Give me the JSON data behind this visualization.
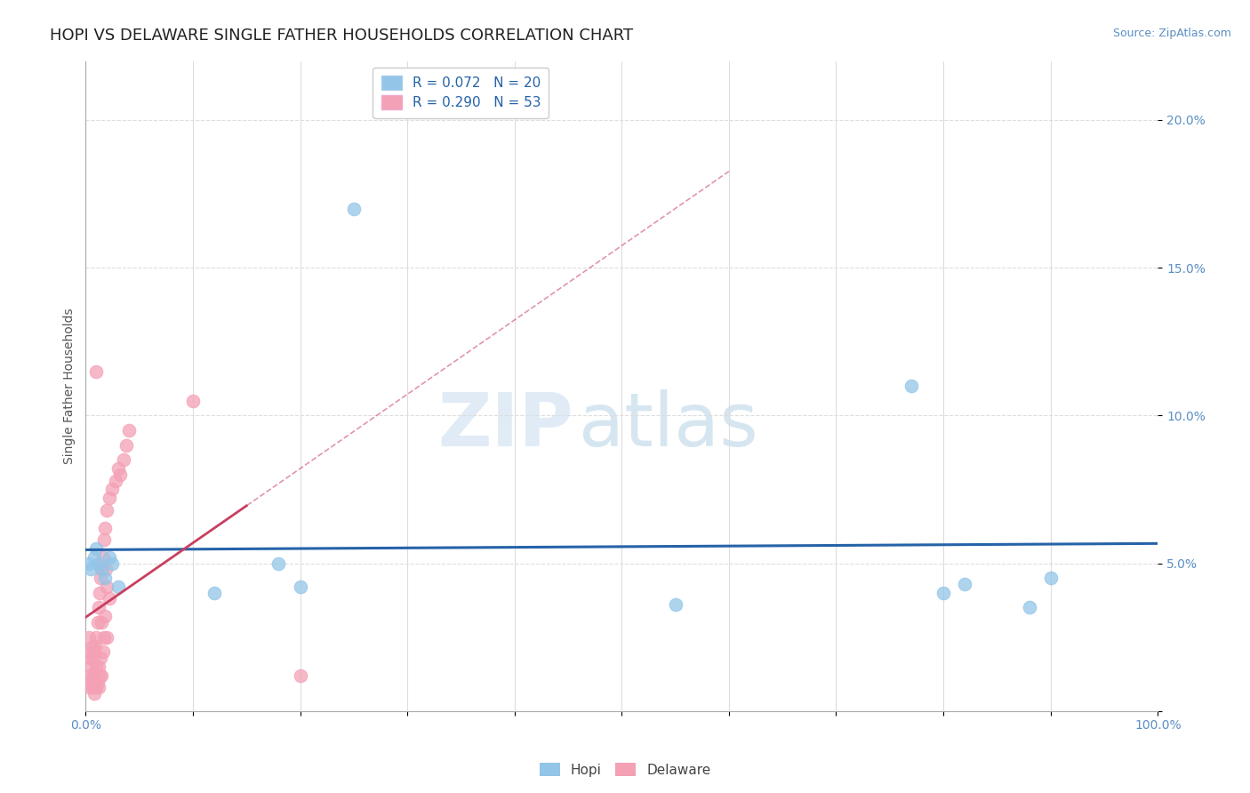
{
  "title": "HOPI VS DELAWARE SINGLE FATHER HOUSEHOLDS CORRELATION CHART",
  "source": "Source: ZipAtlas.com",
  "ylabel": "Single Father Households",
  "xlim": [
    0,
    1.0
  ],
  "ylim": [
    0,
    0.22
  ],
  "xticks": [
    0.0,
    0.1,
    0.2,
    0.3,
    0.4,
    0.5,
    0.6,
    0.7,
    0.8,
    0.9,
    1.0
  ],
  "xticklabels": [
    "0.0%",
    "",
    "",
    "",
    "",
    "",
    "",
    "",
    "",
    "",
    "100.0%"
  ],
  "yticks": [
    0.0,
    0.05,
    0.1,
    0.15,
    0.2
  ],
  "yticklabels": [
    "",
    "5.0%",
    "10.0%",
    "15.0%",
    "20.0%"
  ],
  "hopi_color": "#92C5E8",
  "delaware_color": "#F4A0B5",
  "hopi_R": 0.072,
  "hopi_N": 20,
  "delaware_R": 0.29,
  "delaware_N": 53,
  "hopi_line_color": "#2563A8",
  "delaware_line_color": "#C84060",
  "hopi_points_x": [
    0.003,
    0.005,
    0.008,
    0.01,
    0.012,
    0.015,
    0.018,
    0.022,
    0.025,
    0.03,
    0.25,
    0.2,
    0.18,
    0.55,
    0.77,
    0.8,
    0.82,
    0.88,
    0.9,
    0.12
  ],
  "hopi_points_y": [
    0.05,
    0.048,
    0.052,
    0.055,
    0.05,
    0.048,
    0.045,
    0.052,
    0.05,
    0.042,
    0.17,
    0.042,
    0.05,
    0.036,
    0.11,
    0.04,
    0.043,
    0.035,
    0.045,
    0.04
  ],
  "delaware_points_x": [
    0.002,
    0.003,
    0.003,
    0.004,
    0.004,
    0.005,
    0.005,
    0.006,
    0.006,
    0.007,
    0.007,
    0.008,
    0.008,
    0.008,
    0.009,
    0.009,
    0.01,
    0.01,
    0.01,
    0.011,
    0.011,
    0.012,
    0.012,
    0.012,
    0.013,
    0.013,
    0.014,
    0.014,
    0.015,
    0.015,
    0.015,
    0.016,
    0.016,
    0.017,
    0.017,
    0.018,
    0.018,
    0.019,
    0.02,
    0.02,
    0.02,
    0.022,
    0.022,
    0.025,
    0.028,
    0.03,
    0.032,
    0.035,
    0.038,
    0.04,
    0.1,
    0.2,
    0.01
  ],
  "delaware_points_y": [
    0.02,
    0.025,
    0.012,
    0.018,
    0.008,
    0.015,
    0.01,
    0.022,
    0.008,
    0.018,
    0.012,
    0.02,
    0.01,
    0.006,
    0.022,
    0.008,
    0.025,
    0.015,
    0.008,
    0.03,
    0.01,
    0.035,
    0.015,
    0.008,
    0.04,
    0.012,
    0.045,
    0.018,
    0.048,
    0.03,
    0.012,
    0.052,
    0.02,
    0.058,
    0.025,
    0.062,
    0.032,
    0.048,
    0.068,
    0.042,
    0.025,
    0.072,
    0.038,
    0.075,
    0.078,
    0.082,
    0.08,
    0.085,
    0.09,
    0.095,
    0.105,
    0.012,
    0.115
  ],
  "watermark_zip": "ZIP",
  "watermark_atlas": "atlas",
  "background_color": "#FFFFFF",
  "grid_color": "#DDDDDD",
  "tick_color": "#5B8EC4",
  "title_fontsize": 13,
  "label_fontsize": 10,
  "tick_fontsize": 10,
  "legend_fontsize": 11
}
